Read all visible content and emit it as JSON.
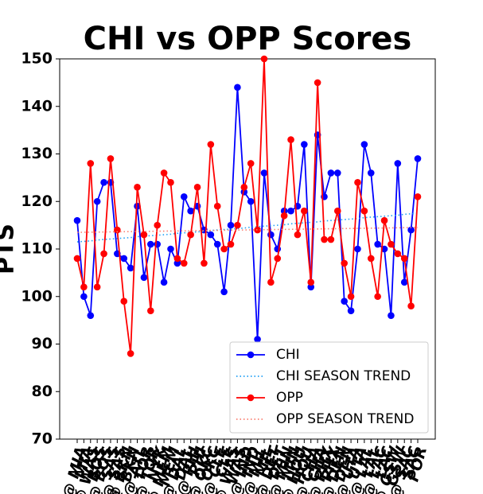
{
  "chart_data": {
    "type": "line",
    "title": "CHI vs OPP Scores",
    "y_label": "PTS",
    "categories": [
      "@ MIA",
      "MIA",
      "@ WAS",
      "BOS",
      "@ BOS",
      "SAS",
      "@ SAS",
      "@ BKN",
      "BKN",
      "@ ATL",
      "TOR",
      "@ TOR",
      "NYK",
      "@ MEM",
      "MEM",
      "@ DAL",
      "DAL",
      "@ PHI",
      "PHI",
      "@ OKC",
      "OKC",
      "@ CLE",
      "CLE",
      "@ WAS",
      "WAS",
      "@ IND",
      "IND",
      "@ MIL",
      "MIL",
      "@ DET",
      "DET",
      "@ MIN",
      "MIN",
      "@ HOU",
      "HOU",
      "@ CHA",
      "CHA",
      "@ PHX",
      "PHX",
      "@ DEN",
      "DEN",
      "@ UTA",
      "UTA",
      "@ LAL",
      "LAL",
      "@ LAC",
      "LAC",
      "@ GSW",
      "GSW",
      "@ SAC",
      "SAC",
      "POR"
    ],
    "series": [
      {
        "name": "CHI",
        "color": "#0000ff",
        "style": "solid",
        "marker": true,
        "values": [
          116,
          100,
          96,
          120,
          124,
          124,
          109,
          108,
          106,
          119,
          104,
          111,
          111,
          103,
          110,
          107,
          121,
          118,
          119,
          114,
          113,
          111,
          101,
          115,
          144,
          122,
          120,
          91,
          126,
          113,
          110,
          118,
          118,
          119,
          132,
          102,
          134,
          121,
          126,
          126,
          99,
          97,
          110,
          132,
          126,
          111,
          110,
          96,
          128,
          103,
          114,
          129
        ]
      },
      {
        "name": "CHI SEASON TREND",
        "color": "#1f9ff5",
        "style": "dotted",
        "marker": false,
        "values": [
          111.5,
          111.6,
          111.7,
          111.9,
          112.0,
          112.1,
          112.2,
          112.3,
          112.4,
          112.6,
          112.7,
          112.8,
          112.9,
          113.0,
          113.1,
          113.3,
          113.4,
          113.5,
          113.6,
          113.7,
          113.9,
          114.0,
          114.1,
          114.2,
          114.3,
          114.4,
          114.6,
          114.7,
          114.8,
          114.9,
          115.0,
          115.1,
          115.3,
          115.4,
          115.5,
          115.6,
          115.7,
          115.9,
          116.0,
          116.1,
          116.2,
          116.3,
          116.4,
          116.6,
          116.7,
          116.8,
          116.9,
          117.0,
          117.1,
          117.3,
          117.4,
          117.5
        ]
      },
      {
        "name": "OPP",
        "color": "#ff0000",
        "style": "solid",
        "marker": true,
        "values": [
          108,
          102,
          128,
          102,
          109,
          129,
          114,
          99,
          88,
          123,
          113,
          97,
          115,
          126,
          124,
          108,
          107,
          113,
          123,
          107,
          132,
          119,
          110,
          111,
          115,
          123,
          128,
          114,
          150,
          103,
          108,
          117,
          133,
          113,
          118,
          103,
          145,
          112,
          112,
          118,
          107,
          100,
          124,
          118,
          108,
          100,
          116,
          111,
          109,
          108,
          98,
          121
        ]
      },
      {
        "name": "OPP SEASON TREND",
        "color": "#fa8072",
        "style": "dotted",
        "marker": false,
        "values": [
          113.5,
          113.52,
          113.54,
          113.56,
          113.58,
          113.6,
          113.62,
          113.64,
          113.66,
          113.68,
          113.7,
          113.72,
          113.74,
          113.76,
          113.78,
          113.8,
          113.82,
          113.84,
          113.86,
          113.88,
          113.9,
          113.92,
          113.94,
          113.96,
          113.98,
          114.0,
          114.02,
          114.04,
          114.06,
          114.08,
          114.1,
          114.12,
          114.14,
          114.16,
          114.18,
          114.2,
          114.22,
          114.24,
          114.26,
          114.28,
          114.3,
          114.32,
          114.34,
          114.36,
          114.38,
          114.4,
          114.42,
          114.44,
          114.46,
          114.48,
          114.5,
          114.52
        ]
      }
    ],
    "ylim": [
      70,
      150
    ],
    "yticks": [
      70,
      80,
      90,
      100,
      110,
      120,
      130,
      140,
      150
    ],
    "grid": false,
    "legend": "lower right"
  }
}
